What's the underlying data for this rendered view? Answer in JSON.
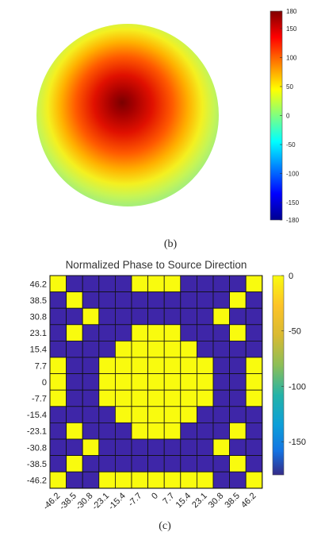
{
  "captions": {
    "b": "(b)",
    "c": "(c)"
  },
  "chart_data": [
    {
      "type": "heatmap",
      "panel": "b",
      "description_shape": "circular",
      "title": "",
      "colormap": "jet",
      "colorbar": {
        "range": [
          -180,
          180
        ],
        "ticks": [
          "180",
          "150",
          "100",
          "50",
          "0",
          "-50",
          "-100",
          "-150",
          "-180"
        ],
        "tick_values": [
          180,
          150,
          100,
          50,
          0,
          -50,
          -100,
          -150,
          -180
        ]
      },
      "center_value": 175,
      "edge_value": 20
    },
    {
      "type": "heatmap",
      "panel": "c",
      "title": "Normalized Phase to Source Direction",
      "colormap": "parula",
      "x_ticks": [
        "-46.2",
        "-38.5",
        "-30.8",
        "-23.1",
        "-15.4",
        "-7.7",
        "0",
        "7.7",
        "15.4",
        "23.1",
        "30.8",
        "38.5",
        "46.2"
      ],
      "y_ticks": [
        "46.2",
        "38.5",
        "30.8",
        "23.1",
        "15.4",
        "7.7",
        "0",
        "-7.7",
        "-15.4",
        "-23.1",
        "-30.8",
        "-38.5",
        "-46.2"
      ],
      "colorbar": {
        "range": [
          -180,
          0
        ],
        "ticks": [
          "0",
          "-50",
          "-100",
          "-150"
        ],
        "tick_values": [
          0,
          -50,
          -100,
          -150
        ]
      },
      "cell_values": [
        [
          0,
          -180,
          -180,
          -180,
          -180,
          0,
          0,
          0,
          -180,
          -180,
          -180,
          -180,
          0
        ],
        [
          -180,
          0,
          -180,
          -180,
          -180,
          -180,
          -180,
          -180,
          -180,
          -180,
          -180,
          0,
          -180
        ],
        [
          -180,
          -180,
          0,
          -180,
          -180,
          -180,
          -180,
          -180,
          -180,
          -180,
          0,
          -180,
          -180
        ],
        [
          -180,
          0,
          -180,
          -180,
          -180,
          0,
          0,
          0,
          -180,
          -180,
          -180,
          0,
          -180
        ],
        [
          -180,
          -180,
          -180,
          -180,
          0,
          0,
          0,
          0,
          0,
          -180,
          -180,
          -180,
          -180
        ],
        [
          0,
          -180,
          -180,
          0,
          0,
          0,
          0,
          0,
          0,
          0,
          -180,
          -180,
          0
        ],
        [
          0,
          -180,
          -180,
          0,
          0,
          0,
          0,
          0,
          0,
          0,
          -180,
          -180,
          0
        ],
        [
          0,
          -180,
          -180,
          0,
          0,
          0,
          0,
          0,
          0,
          0,
          -180,
          -180,
          0
        ],
        [
          -180,
          -180,
          -180,
          -180,
          0,
          0,
          0,
          0,
          0,
          -180,
          -180,
          -180,
          -180
        ],
        [
          -180,
          0,
          -180,
          -180,
          -180,
          0,
          0,
          0,
          -180,
          -180,
          -180,
          0,
          -180
        ],
        [
          -180,
          -180,
          0,
          -180,
          -180,
          -180,
          -180,
          -180,
          -180,
          -180,
          0,
          -180,
          -180
        ],
        [
          -180,
          0,
          -180,
          -180,
          -180,
          -180,
          -180,
          -180,
          -180,
          -180,
          -180,
          0,
          -180
        ],
        [
          0,
          -180,
          -180,
          0,
          0,
          0,
          0,
          0,
          0,
          0,
          -180,
          -180,
          0
        ]
      ]
    }
  ]
}
